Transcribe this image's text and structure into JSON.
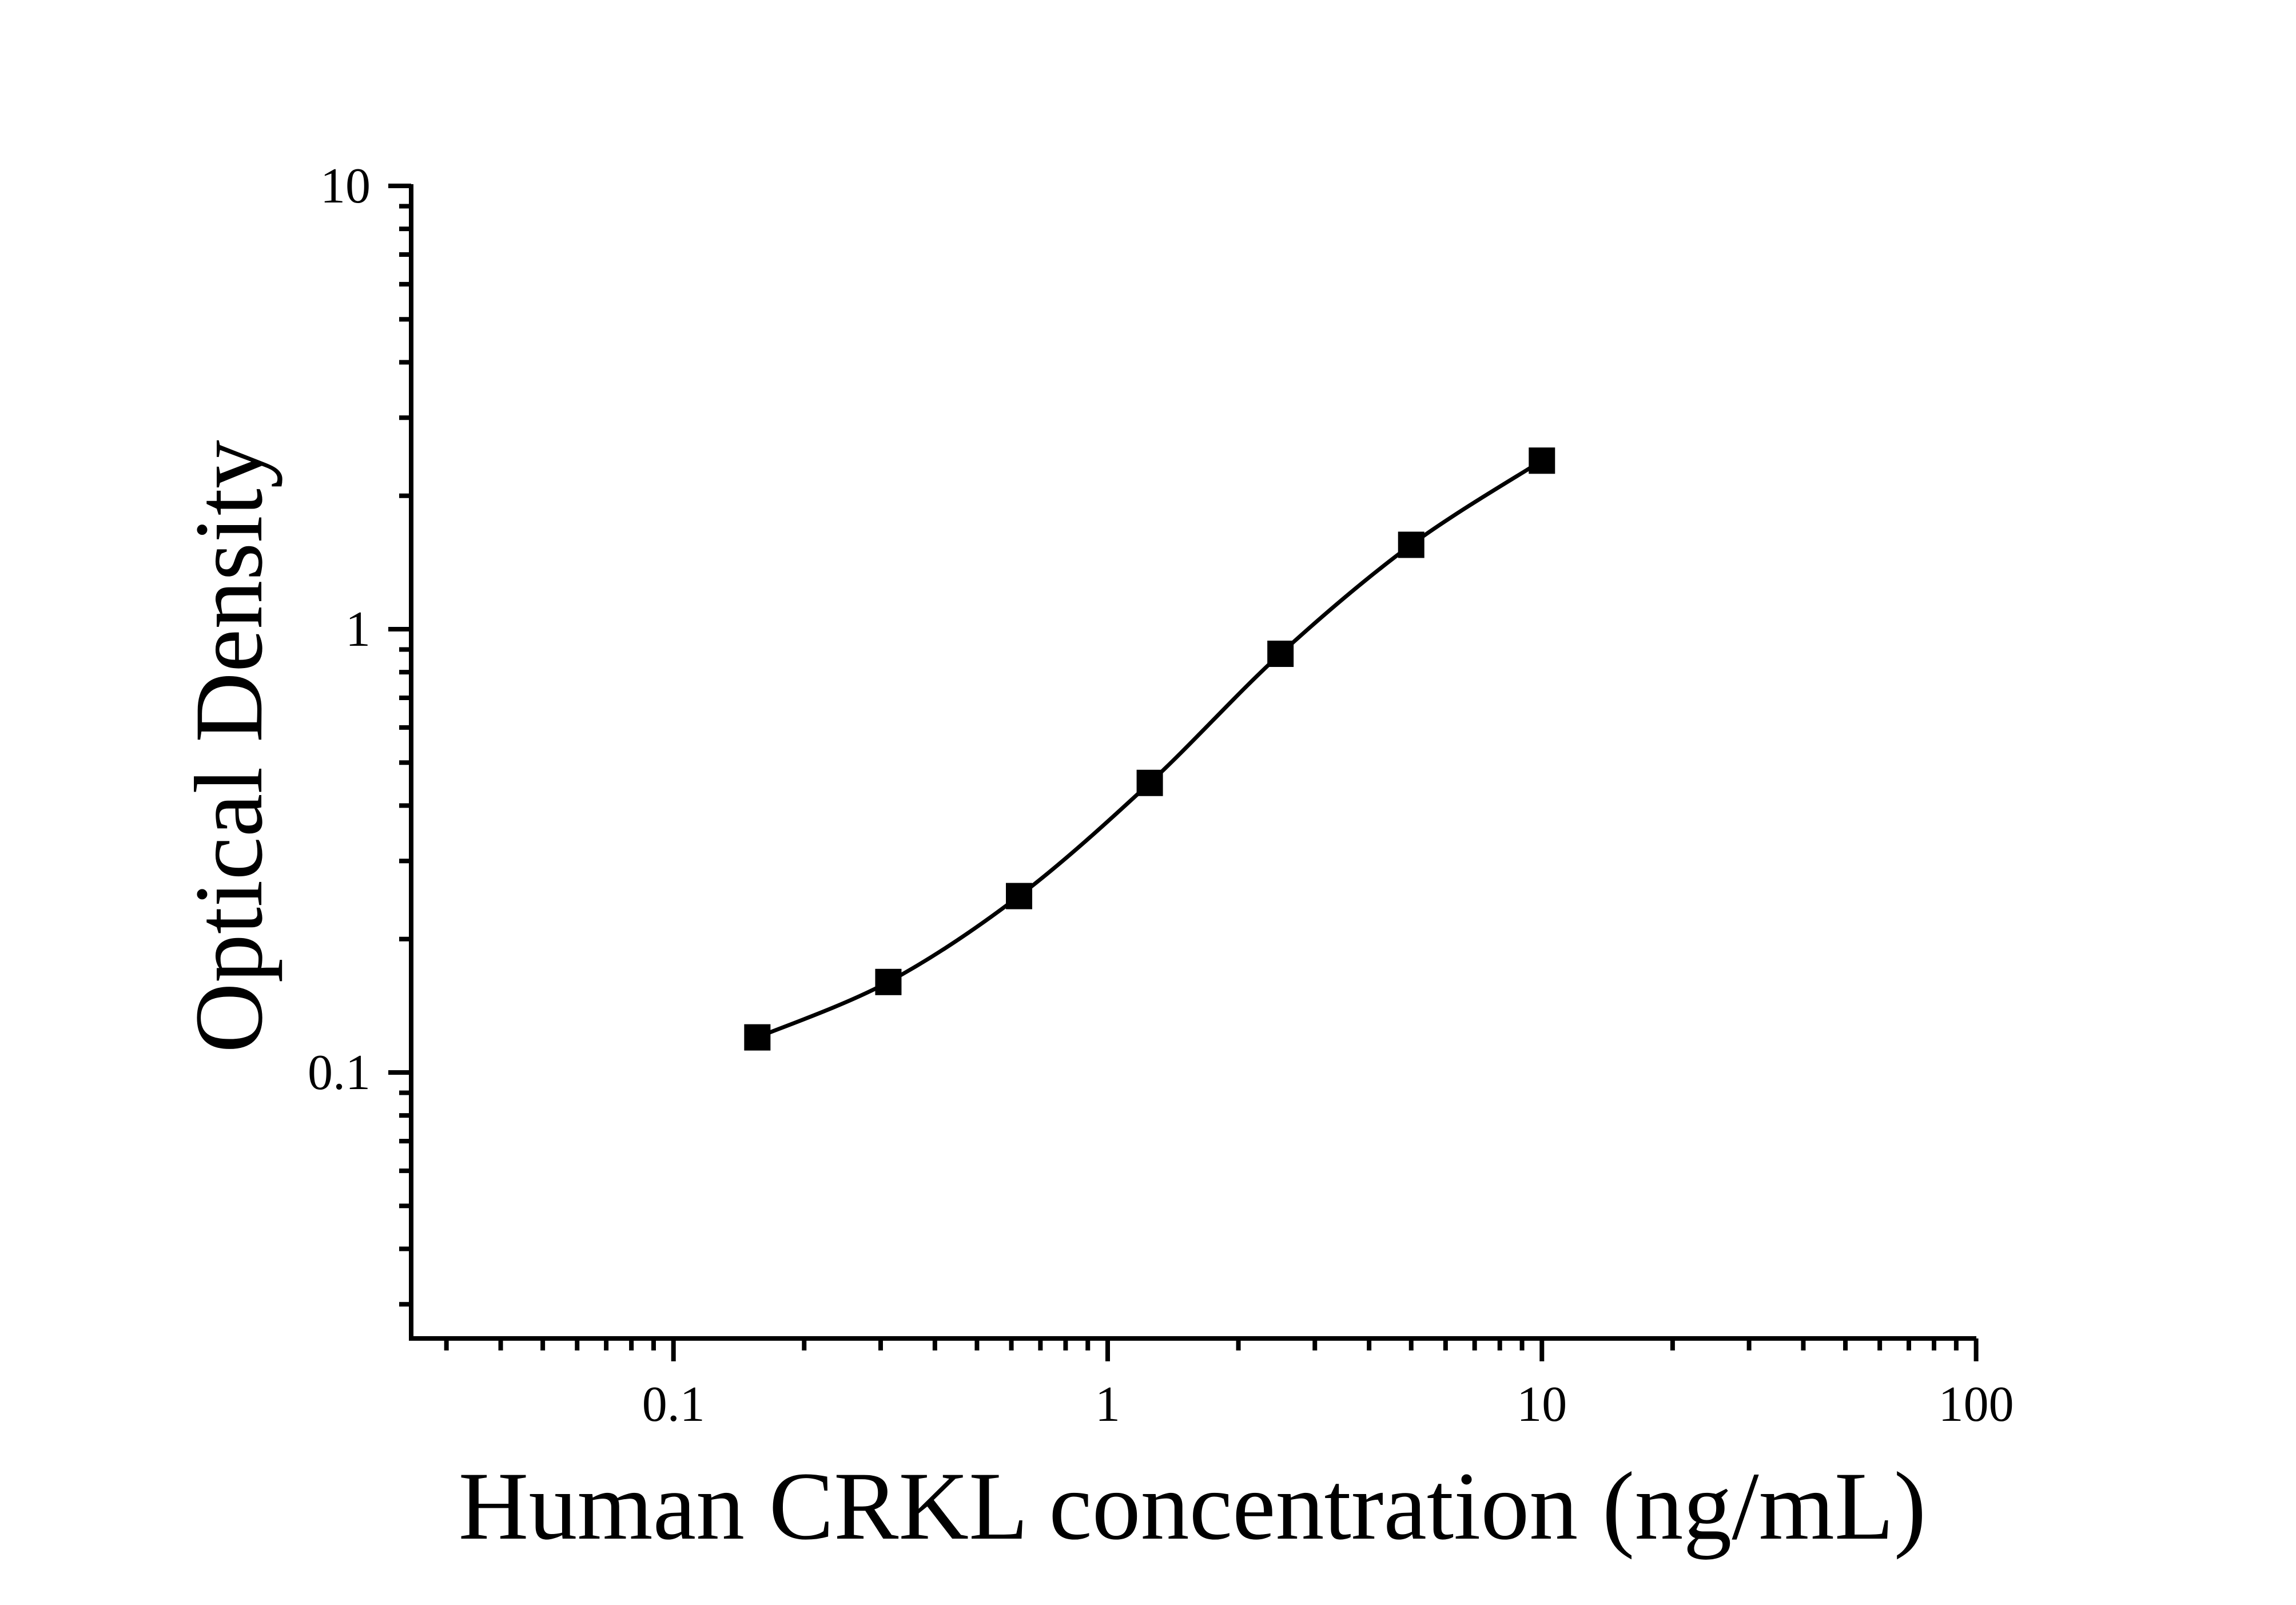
{
  "page": {
    "background": "#ffffff",
    "ink_color": "#000000"
  },
  "chart_data": {
    "type": "line",
    "subtype": "elisa-standard-curve",
    "title": "",
    "xlabel": "Human CRKL concentration (ng/mL)",
    "ylabel": "Optical Density",
    "x_scale": "log",
    "y_scale": "log",
    "xlim": [
      0.025,
      100
    ],
    "ylim": [
      0.025,
      10
    ],
    "grid": false,
    "legend": "none",
    "x_major_ticks": [
      {
        "value": 0.1,
        "label": "0.1"
      },
      {
        "value": 1,
        "label": "1"
      },
      {
        "value": 10,
        "label": "10"
      },
      {
        "value": 100,
        "label": "100"
      }
    ],
    "y_major_ticks": [
      {
        "value": 10,
        "label": "10"
      },
      {
        "value": 1,
        "label": "1"
      },
      {
        "value": 0.1,
        "label": "0.1"
      }
    ],
    "minor_tick_mantissas": [
      2,
      3,
      4,
      5,
      6,
      7,
      8,
      9
    ],
    "series": [
      {
        "name": "standard-curve",
        "marker": "filled-square",
        "line": "smooth",
        "color": "#000000",
        "points": [
          {
            "x": 0.156,
            "y": 0.12
          },
          {
            "x": 0.3125,
            "y": 0.16
          },
          {
            "x": 0.625,
            "y": 0.25
          },
          {
            "x": 1.25,
            "y": 0.45
          },
          {
            "x": 2.5,
            "y": 0.88
          },
          {
            "x": 5,
            "y": 1.55
          },
          {
            "x": 10,
            "y": 2.4
          }
        ]
      }
    ]
  }
}
